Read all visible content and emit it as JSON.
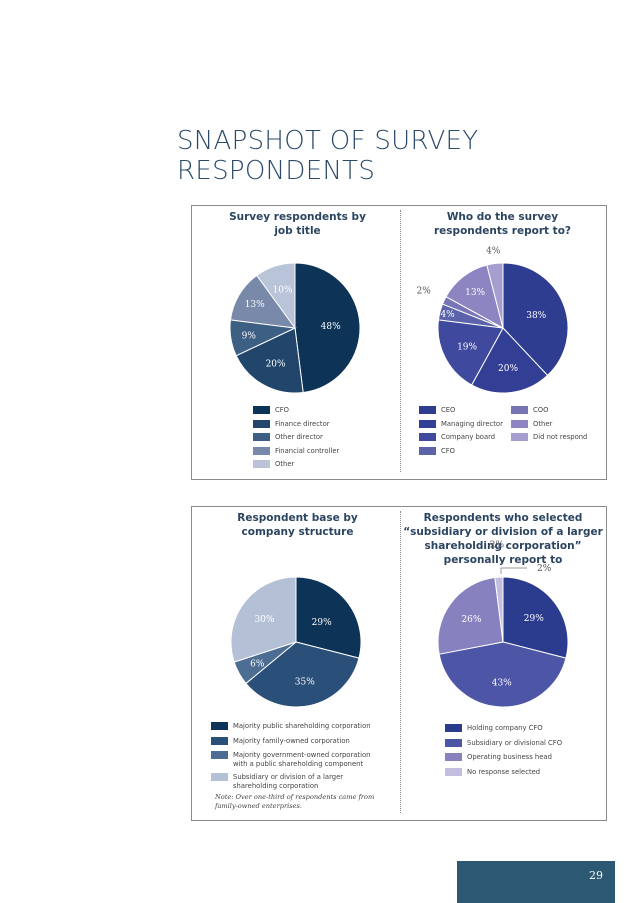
{
  "page": {
    "title": "SNAPSHOT OF SURVEY RESPONDENTS",
    "page_number": "29",
    "note": "Note: Over one-third of respondents came from family-owned enterprises."
  },
  "chart_data": [
    {
      "type": "pie",
      "title": "Survey respondents by job title",
      "categories": [
        "CFO",
        "Finance director",
        "Other director",
        "Financial controller",
        "Other"
      ],
      "values": [
        48,
        20,
        9,
        13,
        10
      ],
      "labels": [
        "48%",
        "20%",
        "9%",
        "13%",
        "10%"
      ],
      "colors": [
        "#0d3356",
        "#21456b",
        "#3e5f84",
        "#7889aa",
        "#b9c4d8"
      ]
    },
    {
      "type": "pie",
      "title": "Who do the survey respondents report to?",
      "categories": [
        "CEO",
        "Managing director",
        "Company board",
        "CFO",
        "COO",
        "Other",
        "Did not respond"
      ],
      "values": [
        38,
        20,
        19,
        4,
        2,
        13,
        4
      ],
      "labels": [
        "38%",
        "20%",
        "19%",
        "4%",
        "2%",
        "13%",
        "4%"
      ],
      "colors": [
        "#2e3d8f",
        "#333f94",
        "#3f4a9e",
        "#5c63ab",
        "#7775b6",
        "#8c85c2",
        "#a69ed1"
      ]
    },
    {
      "type": "pie",
      "title": "Respondent base by company structure",
      "categories": [
        "Majority public shareholding corporation",
        "Majority family-owned corporation",
        "Majority government-owned corporation with a public shareholding component",
        "Subsidiary or division of a larger shareholding corporation"
      ],
      "values": [
        29,
        35,
        6,
        30
      ],
      "labels": [
        "29%",
        "35%",
        "6%",
        "30%"
      ],
      "colors": [
        "#0d3356",
        "#2a4f78",
        "#4e6d92",
        "#b3c0d6"
      ]
    },
    {
      "type": "pie",
      "title": "Respondents who selected “subsidiary or division of a larger shareholding corporation” personally report to",
      "categories": [
        "Holding company CFO",
        "Subsidiary or divisional CFO",
        "Operating business head",
        "No response selected"
      ],
      "values": [
        29,
        43,
        26,
        2
      ],
      "labels": [
        "29%",
        "43%",
        "26%",
        "2%"
      ],
      "colors": [
        "#2b3c8e",
        "#4c55a6",
        "#8781c0",
        "#c3bee0"
      ]
    }
  ]
}
